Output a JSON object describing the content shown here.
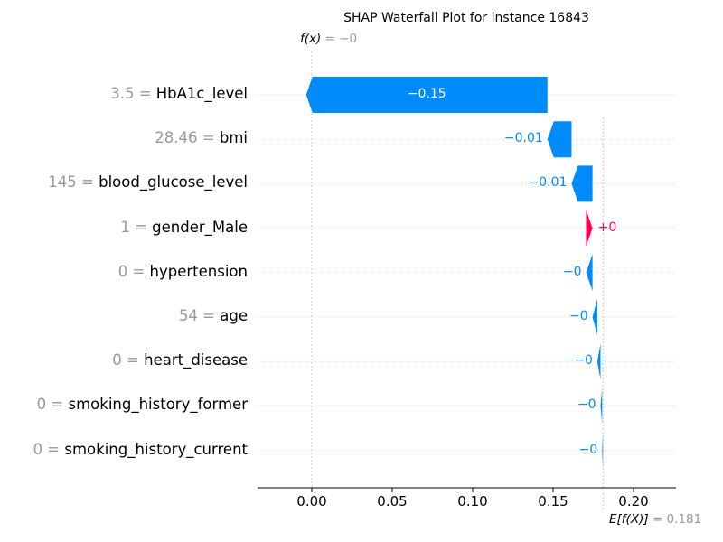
{
  "chart_data": {
    "type": "waterfall",
    "title": "SHAP Waterfall Plot for instance 16843",
    "fx_label": "f(x)",
    "fx_value": "= −0",
    "fx": 0.0,
    "base_label": "E[f(X)]",
    "base_value_text": "= 0.181",
    "base_value": 0.181,
    "xlim": [
      -0.03,
      0.205
    ],
    "xticks": [
      0.0,
      0.05,
      0.1,
      0.15,
      0.2
    ],
    "xtick_labels": [
      "0.00",
      "0.05",
      "0.10",
      "0.15",
      "0.20"
    ],
    "grid": "horizontal dotted",
    "colors": {
      "negative": "#008bfb",
      "positive": "#ff0051",
      "muted": "#999999"
    },
    "features": [
      {
        "value": "3.5",
        "name": "HbA1c_level",
        "shap": -0.15,
        "label": "−0.15"
      },
      {
        "value": "28.46",
        "name": "bmi",
        "shap": -0.015,
        "label": "−0.01"
      },
      {
        "value": "145",
        "name": "blood_glucose_level",
        "shap": -0.013,
        "label": "−0.01"
      },
      {
        "value": "1",
        "name": "gender_Male",
        "shap": 0.004,
        "label": "+0"
      },
      {
        "value": "0",
        "name": "hypertension",
        "shap": -0.004,
        "label": "−0"
      },
      {
        "value": "54",
        "name": "age",
        "shap": -0.003,
        "label": "−0"
      },
      {
        "value": "0",
        "name": "heart_disease",
        "shap": -0.002,
        "label": "−0"
      },
      {
        "value": "0",
        "name": "smoking_history_former",
        "shap": -0.001,
        "label": "−0"
      },
      {
        "value": "0",
        "name": "smoking_history_current",
        "shap": -0.0005,
        "label": "−0"
      }
    ]
  }
}
